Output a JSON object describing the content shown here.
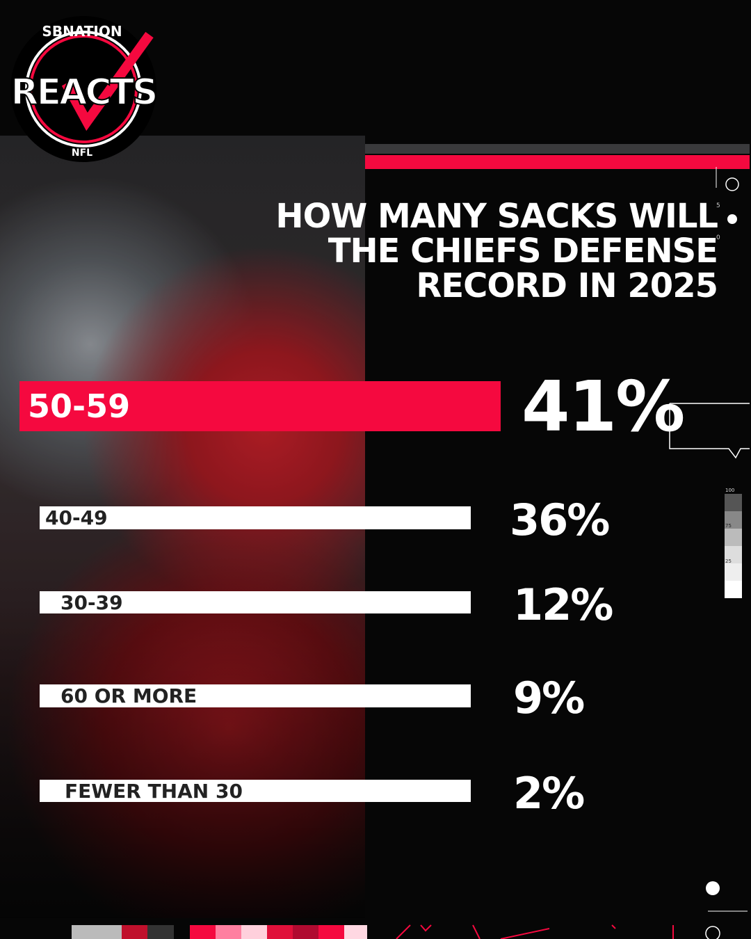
{
  "brand": {
    "top": "SBNATION",
    "main": "REACTS",
    "sub": "NFL"
  },
  "question": [
    "HOW MANY SACKS WILL",
    "THE CHIEFS DEFENSE",
    "RECORD IN 2025"
  ],
  "results": [
    {
      "option": "50-59",
      "percent": "41%"
    },
    {
      "option": "40-49",
      "percent": "36%"
    },
    {
      "option": "30-39",
      "percent": "12%"
    },
    {
      "option": "60 OR MORE",
      "percent": "9%"
    },
    {
      "option": "FEWER THAN 30",
      "percent": "2%"
    }
  ],
  "marker_labels": [
    "5",
    "0"
  ],
  "scale_labels": [
    "100",
    "75",
    "25"
  ]
}
